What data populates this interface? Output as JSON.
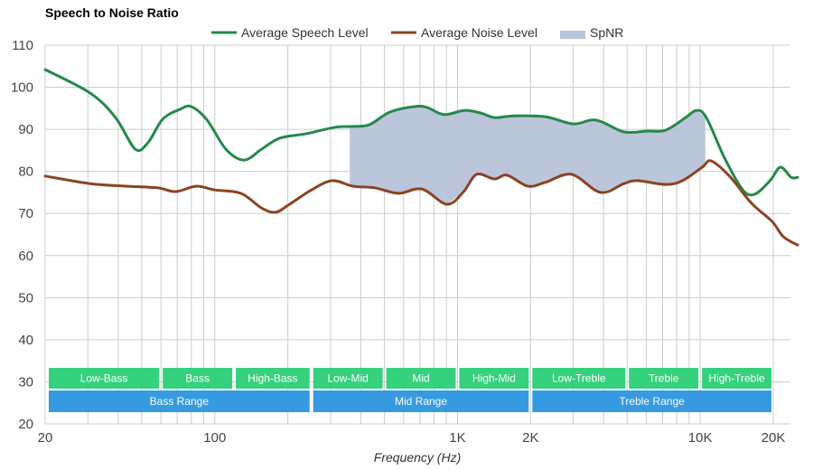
{
  "chart_data": {
    "type": "line",
    "title": "Speech to Noise Ratio",
    "xlabel": "Frequency (Hz)",
    "ylabel": "",
    "xscale": "log",
    "xlim": [
      20,
      25000
    ],
    "ylim": [
      20,
      110
    ],
    "grid": true,
    "legend_position": "top-center",
    "x_ticks": [
      {
        "value": 20,
        "label": "20"
      },
      {
        "value": 100,
        "label": "100"
      },
      {
        "value": 1000,
        "label": "1K"
      },
      {
        "value": 2000,
        "label": "2K"
      },
      {
        "value": 10000,
        "label": "10K"
      },
      {
        "value": 20000,
        "label": "20K"
      }
    ],
    "x_minor_grid": [
      30,
      40,
      50,
      60,
      70,
      80,
      90,
      200,
      300,
      400,
      500,
      600,
      700,
      800,
      900,
      3000,
      4000,
      5000,
      6000,
      7000,
      8000,
      9000
    ],
    "y_ticks": [
      20,
      30,
      40,
      50,
      60,
      70,
      80,
      90,
      100,
      110
    ],
    "legend": [
      {
        "name": "Average Speech Level",
        "type": "line",
        "color": "#25894a"
      },
      {
        "name": "Average Noise Level",
        "type": "line",
        "color": "#8b4423"
      },
      {
        "name": "SpNR",
        "type": "area",
        "color": "#b7c3d8"
      }
    ],
    "series": [
      {
        "name": "Average Speech Level",
        "color": "#25894a",
        "x": [
          20,
          30.7,
          39,
          47,
          53,
          61,
          72,
          80,
          93,
          111,
          132,
          156,
          185,
          240,
          313,
          370,
          433,
          526,
          660,
          750,
          880,
          1065,
          1245,
          1420,
          1700,
          2300,
          3000,
          3720,
          4850,
          6030,
          7200,
          8700,
          9650,
          10600,
          12600,
          15000,
          16800,
          19400,
          21400,
          23700,
          25200
        ],
        "y": [
          104.2,
          98.6,
          92.8,
          85.3,
          86.8,
          92.4,
          94.8,
          95.4,
          92.2,
          85.3,
          82.7,
          85.3,
          87.9,
          89.0,
          90.5,
          90.7,
          91.1,
          94.1,
          95.4,
          95.2,
          93.5,
          94.5,
          93.9,
          92.8,
          93.2,
          93.0,
          91.3,
          92.2,
          89.4,
          89.6,
          89.8,
          92.8,
          94.5,
          92.8,
          83.2,
          75.6,
          74.6,
          77.8,
          81.0,
          78.6,
          78.6
        ]
      },
      {
        "name": "Average Noise Level",
        "color": "#8b4423",
        "x": [
          20,
          30.7,
          43,
          58,
          69,
          84,
          100,
          128,
          156,
          178,
          201,
          250,
          305,
          370,
          456,
          570,
          714,
          905,
          1060,
          1200,
          1420,
          1600,
          1950,
          2300,
          2950,
          3880,
          4850,
          5500,
          7200,
          8450,
          10200,
          11100,
          13200,
          16300,
          19800,
          22000,
          25200
        ],
        "y": [
          78.9,
          77.1,
          76.5,
          76.1,
          75.2,
          76.5,
          75.6,
          74.8,
          71.3,
          70.3,
          72.0,
          75.6,
          77.8,
          76.5,
          76.1,
          74.8,
          75.8,
          72.2,
          75.2,
          79.3,
          78.2,
          79.1,
          76.5,
          77.4,
          79.3,
          75.0,
          77.1,
          77.8,
          76.9,
          77.8,
          81.0,
          82.5,
          78.9,
          72.4,
          68.1,
          64.5,
          62.5
        ]
      }
    ],
    "spnr_range_hz": [
      360,
      10500
    ],
    "frequency_bands": [
      {
        "label": "Low-Bass",
        "from": 20,
        "to": 60,
        "row": "band"
      },
      {
        "label": "Bass",
        "from": 60,
        "to": 120,
        "row": "band"
      },
      {
        "label": "High-Bass",
        "from": 120,
        "to": 250,
        "row": "band"
      },
      {
        "label": "Low-Mid",
        "from": 250,
        "to": 500,
        "row": "band"
      },
      {
        "label": "Mid",
        "from": 500,
        "to": 1000,
        "row": "band"
      },
      {
        "label": "High-Mid",
        "from": 1000,
        "to": 2000,
        "row": "band"
      },
      {
        "label": "Low-Treble",
        "from": 2000,
        "to": 5000,
        "row": "band"
      },
      {
        "label": "Treble",
        "from": 5000,
        "to": 10000,
        "row": "band"
      },
      {
        "label": "High-Treble",
        "from": 10000,
        "to": 20000,
        "row": "band"
      },
      {
        "label": "Bass Range",
        "from": 20,
        "to": 250,
        "row": "range"
      },
      {
        "label": "Mid Range",
        "from": 250,
        "to": 2000,
        "row": "range"
      },
      {
        "label": "Treble Range",
        "from": 2000,
        "to": 20000,
        "row": "range"
      }
    ],
    "band_colors": {
      "band": "#2ecf78",
      "range": "#2f97e0"
    }
  }
}
